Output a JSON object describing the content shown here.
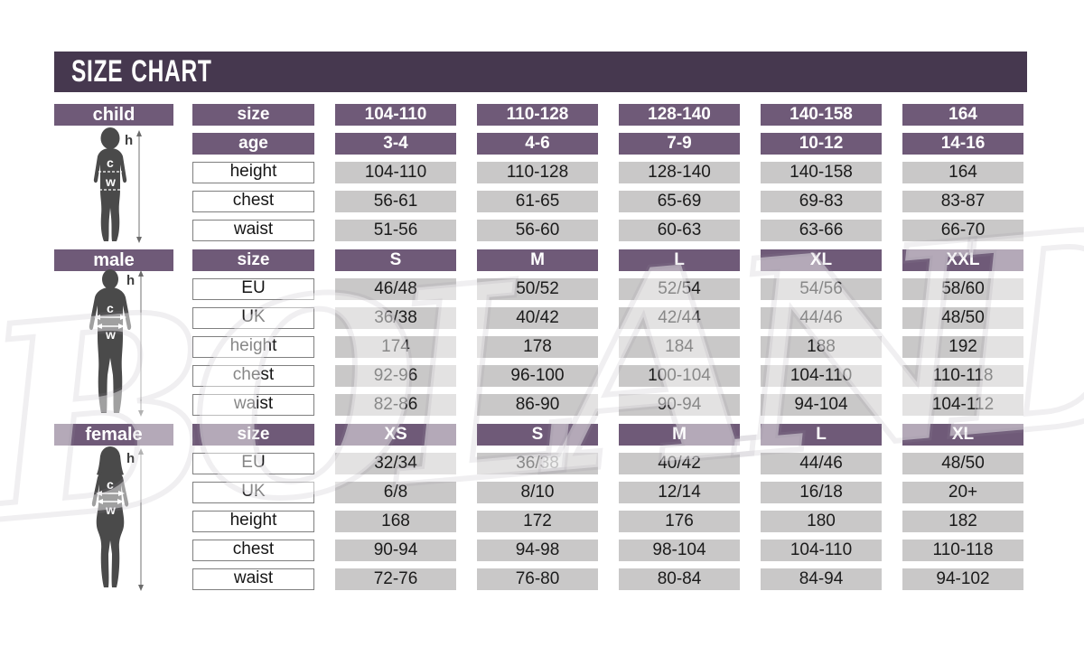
{
  "title": "SIZE CHART",
  "watermark": "BOLAND",
  "colors": {
    "title_bar": "#46384f",
    "header_purple": "#6f5a78",
    "cell_gray": "#c9c8c8",
    "silhouette": "#4a4a4a"
  },
  "figure_annotations": {
    "height_letter": "h",
    "chest_letter": "c",
    "waist_letter": "w"
  },
  "sections": [
    {
      "id": "child",
      "label": "child",
      "header_rows": [
        {
          "label": "size",
          "values": [
            "104-110",
            "110-128",
            "128-140",
            "140-158",
            "164"
          ]
        },
        {
          "label": "age",
          "values": [
            "3-4",
            "4-6",
            "7-9",
            "10-12",
            "14-16"
          ]
        }
      ],
      "data_rows": [
        {
          "label": "height",
          "values": [
            "104-110",
            "110-128",
            "128-140",
            "140-158",
            "164"
          ]
        },
        {
          "label": "chest",
          "values": [
            "56-61",
            "61-65",
            "65-69",
            "69-83",
            "83-87"
          ]
        },
        {
          "label": "waist",
          "values": [
            "51-56",
            "56-60",
            "60-63",
            "63-66",
            "66-70"
          ]
        }
      ]
    },
    {
      "id": "male",
      "label": "male",
      "header_rows": [
        {
          "label": "size",
          "values": [
            "S",
            "M",
            "L",
            "XL",
            "XXL"
          ]
        }
      ],
      "data_rows": [
        {
          "label": "EU",
          "values": [
            "46/48",
            "50/52",
            "52/54",
            "54/56",
            "58/60"
          ]
        },
        {
          "label": "UK",
          "values": [
            "36/38",
            "40/42",
            "42/44",
            "44/46",
            "48/50"
          ]
        },
        {
          "label": "height",
          "values": [
            "174",
            "178",
            "184",
            "188",
            "192"
          ]
        },
        {
          "label": "chest",
          "values": [
            "92-96",
            "96-100",
            "100-104",
            "104-110",
            "110-118"
          ]
        },
        {
          "label": "waist",
          "values": [
            "82-86",
            "86-90",
            "90-94",
            "94-104",
            "104-112"
          ]
        }
      ]
    },
    {
      "id": "female",
      "label": "female",
      "header_rows": [
        {
          "label": "size",
          "values": [
            "XS",
            "S",
            "M",
            "L",
            "XL"
          ]
        }
      ],
      "data_rows": [
        {
          "label": "EU",
          "values": [
            "32/34",
            "36/38",
            "40/42",
            "44/46",
            "48/50"
          ]
        },
        {
          "label": "UK",
          "values": [
            "6/8",
            "8/10",
            "12/14",
            "16/18",
            "20+"
          ]
        },
        {
          "label": "height",
          "values": [
            "168",
            "172",
            "176",
            "180",
            "182"
          ]
        },
        {
          "label": "chest",
          "values": [
            "90-94",
            "94-98",
            "98-104",
            "104-110",
            "110-118"
          ]
        },
        {
          "label": "waist",
          "values": [
            "72-76",
            "76-80",
            "80-84",
            "84-94",
            "94-102"
          ]
        }
      ]
    }
  ],
  "chart_data": [
    {
      "type": "table",
      "title": "child",
      "columns": [
        "size",
        "104-110",
        "110-128",
        "128-140",
        "140-158",
        "164"
      ],
      "rows": [
        [
          "age",
          "3-4",
          "4-6",
          "7-9",
          "10-12",
          "14-16"
        ],
        [
          "height",
          "104-110",
          "110-128",
          "128-140",
          "140-158",
          "164"
        ],
        [
          "chest",
          "56-61",
          "61-65",
          "65-69",
          "69-83",
          "83-87"
        ],
        [
          "waist",
          "51-56",
          "56-60",
          "60-63",
          "63-66",
          "66-70"
        ]
      ]
    },
    {
      "type": "table",
      "title": "male",
      "columns": [
        "size",
        "S",
        "M",
        "L",
        "XL",
        "XXL"
      ],
      "rows": [
        [
          "EU",
          "46/48",
          "50/52",
          "52/54",
          "54/56",
          "58/60"
        ],
        [
          "UK",
          "36/38",
          "40/42",
          "42/44",
          "44/46",
          "48/50"
        ],
        [
          "height",
          "174",
          "178",
          "184",
          "188",
          "192"
        ],
        [
          "chest",
          "92-96",
          "96-100",
          "100-104",
          "104-110",
          "110-118"
        ],
        [
          "waist",
          "82-86",
          "86-90",
          "90-94",
          "94-104",
          "104-112"
        ]
      ]
    },
    {
      "type": "table",
      "title": "female",
      "columns": [
        "size",
        "XS",
        "S",
        "M",
        "L",
        "XL"
      ],
      "rows": [
        [
          "EU",
          "32/34",
          "36/38",
          "40/42",
          "44/46",
          "48/50"
        ],
        [
          "UK",
          "6/8",
          "8/10",
          "12/14",
          "16/18",
          "20+"
        ],
        [
          "height",
          "168",
          "172",
          "176",
          "180",
          "182"
        ],
        [
          "chest",
          "90-94",
          "94-98",
          "98-104",
          "104-110",
          "110-118"
        ],
        [
          "waist",
          "72-76",
          "76-80",
          "80-84",
          "84-94",
          "94-102"
        ]
      ]
    }
  ]
}
